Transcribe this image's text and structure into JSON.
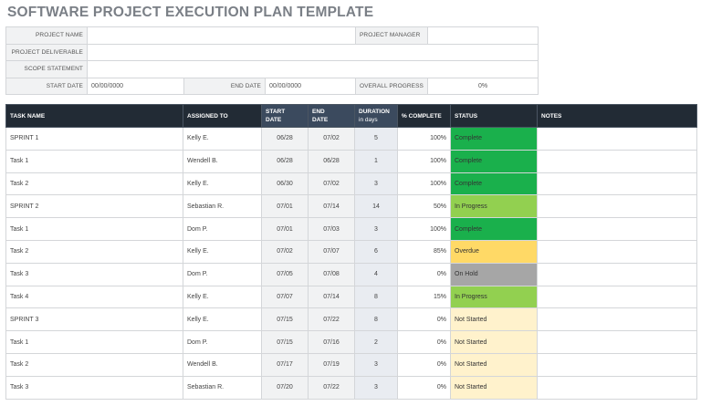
{
  "title": "SOFTWARE PROJECT EXECUTION PLAN TEMPLATE",
  "info": {
    "project_name_label": "PROJECT NAME",
    "project_name_value": "",
    "project_manager_label": "PROJECT MANAGER",
    "project_manager_value": "",
    "project_deliverable_label": "PROJECT DELIVERABLE",
    "project_deliverable_value": "",
    "scope_statement_label": "SCOPE STATEMENT",
    "scope_statement_value": "",
    "start_date_label": "START DATE",
    "start_date_value": "00/00/0000",
    "end_date_label": "END DATE",
    "end_date_value": "00/00/0000",
    "overall_progress_label": "OVERALL PROGRESS",
    "overall_progress_value": "0%"
  },
  "table": {
    "headers": {
      "task_name": "TASK NAME",
      "assigned_to": "ASSIGNED TO",
      "start_date_1": "START",
      "start_date_2": "DATE",
      "end_date_1": "END",
      "end_date_2": "DATE",
      "duration_1": "DURATION",
      "duration_2": "in days",
      "percent_complete": "% COMPLETE",
      "status": "STATUS",
      "notes": "NOTES"
    },
    "status_colors": {
      "Complete": "#1ab04c",
      "In Progress": "#92d050",
      "Overdue": "#ffd966",
      "On Hold": "#a6a6a6",
      "Not Started": "#fff2cc"
    },
    "rows": [
      {
        "task": "SPRINT 1",
        "assigned": "Kelly E.",
        "start": "06/28",
        "end": "07/02",
        "duration": "5",
        "percent": "100%",
        "status": "Complete",
        "notes": ""
      },
      {
        "task": "Task 1",
        "assigned": "Wendell B.",
        "start": "06/28",
        "end": "06/28",
        "duration": "1",
        "percent": "100%",
        "status": "Complete",
        "notes": ""
      },
      {
        "task": "Task 2",
        "assigned": "Kelly E.",
        "start": "06/30",
        "end": "07/02",
        "duration": "3",
        "percent": "100%",
        "status": "Complete",
        "notes": ""
      },
      {
        "task": "SPRINT 2",
        "assigned": "Sebastian R.",
        "start": "07/01",
        "end": "07/14",
        "duration": "14",
        "percent": "50%",
        "status": "In Progress",
        "notes": ""
      },
      {
        "task": "Task 1",
        "assigned": "Dom P.",
        "start": "07/01",
        "end": "07/03",
        "duration": "3",
        "percent": "100%",
        "status": "Complete",
        "notes": ""
      },
      {
        "task": "Task 2",
        "assigned": "Kelly E.",
        "start": "07/02",
        "end": "07/07",
        "duration": "6",
        "percent": "85%",
        "status": "Overdue",
        "notes": ""
      },
      {
        "task": "Task 3",
        "assigned": "Dom P.",
        "start": "07/05",
        "end": "07/08",
        "duration": "4",
        "percent": "0%",
        "status": "On Hold",
        "notes": ""
      },
      {
        "task": "Task 4",
        "assigned": "Kelly E.",
        "start": "07/07",
        "end": "07/14",
        "duration": "8",
        "percent": "15%",
        "status": "In Progress",
        "notes": ""
      },
      {
        "task": "SPRINT 3",
        "assigned": "Kelly E.",
        "start": "07/15",
        "end": "07/22",
        "duration": "8",
        "percent": "0%",
        "status": "Not Started",
        "notes": ""
      },
      {
        "task": "Task 1",
        "assigned": "Dom P.",
        "start": "07/15",
        "end": "07/16",
        "duration": "2",
        "percent": "0%",
        "status": "Not Started",
        "notes": ""
      },
      {
        "task": "Task 2",
        "assigned": "Wendell B.",
        "start": "07/17",
        "end": "07/19",
        "duration": "3",
        "percent": "0%",
        "status": "Not Started",
        "notes": ""
      },
      {
        "task": "Task 3",
        "assigned": "Sebastian R.",
        "start": "07/20",
        "end": "07/22",
        "duration": "3",
        "percent": "0%",
        "status": "Not Started",
        "notes": ""
      }
    ]
  }
}
